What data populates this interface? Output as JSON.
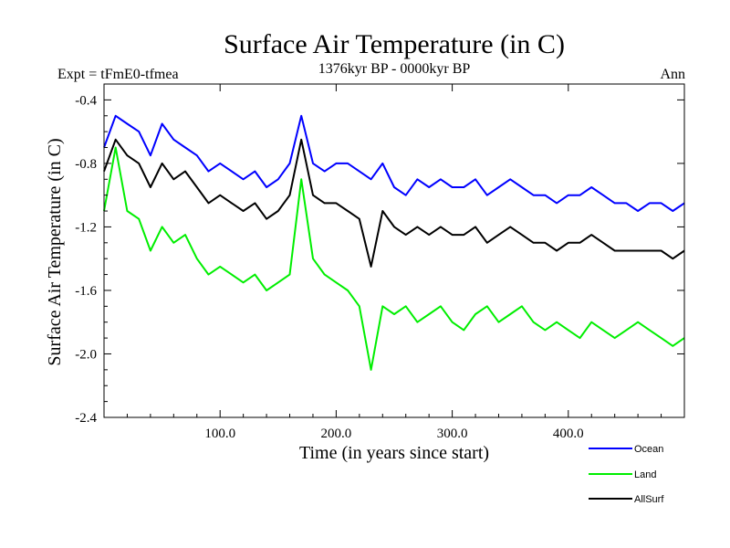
{
  "chart_data": {
    "type": "line",
    "title": "Surface Air Temperature (in C)",
    "subtitle_left": "Expt = tFmE0-tfmea",
    "subtitle_center": "1376kyr BP - 0000kyr BP",
    "subtitle_right": "Ann",
    "xlabel": "Time (in years since start)",
    "ylabel": "Surface Air Temperature (in C)",
    "xlim": [
      0,
      500
    ],
    "ylim": [
      -2.4,
      -0.3
    ],
    "xticks": [
      {
        "value": 100,
        "label": "100.0"
      },
      {
        "value": 200,
        "label": "200.0"
      },
      {
        "value": 300,
        "label": "300.0"
      },
      {
        "value": 400,
        "label": "400.0"
      }
    ],
    "yticks": [
      {
        "value": -0.4,
        "label": "-0.4"
      },
      {
        "value": -0.8,
        "label": "-0.8"
      },
      {
        "value": -1.2,
        "label": "-1.2"
      },
      {
        "value": -1.6,
        "label": "-1.6"
      },
      {
        "value": -2.0,
        "label": "-2.0"
      },
      {
        "value": -2.4,
        "label": "-2.4"
      }
    ],
    "x": [
      0,
      10,
      20,
      30,
      40,
      50,
      60,
      70,
      80,
      90,
      100,
      110,
      120,
      130,
      140,
      150,
      160,
      170,
      180,
      190,
      200,
      210,
      220,
      230,
      240,
      250,
      260,
      270,
      280,
      290,
      300,
      310,
      320,
      330,
      340,
      350,
      360,
      370,
      380,
      390,
      400,
      410,
      420,
      430,
      440,
      450,
      460,
      470,
      480,
      490,
      500
    ],
    "series": [
      {
        "name": "Ocean",
        "color": "#0000ff",
        "values": [
          -0.7,
          -0.5,
          -0.55,
          -0.6,
          -0.75,
          -0.55,
          -0.65,
          -0.7,
          -0.75,
          -0.85,
          -0.8,
          -0.85,
          -0.9,
          -0.85,
          -0.95,
          -0.9,
          -0.8,
          -0.5,
          -0.8,
          -0.85,
          -0.8,
          -0.8,
          -0.85,
          -0.9,
          -0.8,
          -0.95,
          -1.0,
          -0.9,
          -0.95,
          -0.9,
          -0.95,
          -0.95,
          -0.9,
          -1.0,
          -0.95,
          -0.9,
          -0.95,
          -1.0,
          -1.0,
          -1.05,
          -1.0,
          -1.0,
          -0.95,
          -1.0,
          -1.05,
          -1.05,
          -1.1,
          -1.05,
          -1.05,
          -1.1,
          -1.05
        ]
      },
      {
        "name": "Land",
        "color": "#00ee00",
        "values": [
          -1.1,
          -0.7,
          -1.1,
          -1.15,
          -1.35,
          -1.2,
          -1.3,
          -1.25,
          -1.4,
          -1.5,
          -1.45,
          -1.5,
          -1.55,
          -1.5,
          -1.6,
          -1.55,
          -1.5,
          -0.9,
          -1.4,
          -1.5,
          -1.55,
          -1.6,
          -1.7,
          -2.1,
          -1.7,
          -1.75,
          -1.7,
          -1.8,
          -1.75,
          -1.7,
          -1.8,
          -1.85,
          -1.75,
          -1.7,
          -1.8,
          -1.75,
          -1.7,
          -1.8,
          -1.85,
          -1.8,
          -1.85,
          -1.9,
          -1.8,
          -1.85,
          -1.9,
          -1.85,
          -1.8,
          -1.85,
          -1.9,
          -1.95,
          -1.9
        ]
      },
      {
        "name": "AllSurf",
        "color": "#000000",
        "values": [
          -0.85,
          -0.65,
          -0.75,
          -0.8,
          -0.95,
          -0.8,
          -0.9,
          -0.85,
          -0.95,
          -1.05,
          -1.0,
          -1.05,
          -1.1,
          -1.05,
          -1.15,
          -1.1,
          -1.0,
          -0.65,
          -1.0,
          -1.05,
          -1.05,
          -1.1,
          -1.15,
          -1.45,
          -1.1,
          -1.2,
          -1.25,
          -1.2,
          -1.25,
          -1.2,
          -1.25,
          -1.25,
          -1.2,
          -1.3,
          -1.25,
          -1.2,
          -1.25,
          -1.3,
          -1.3,
          -1.35,
          -1.3,
          -1.3,
          -1.25,
          -1.3,
          -1.35,
          -1.35,
          -1.35,
          -1.35,
          -1.35,
          -1.4,
          -1.35
        ]
      }
    ],
    "legend_position": "bottom-right"
  }
}
